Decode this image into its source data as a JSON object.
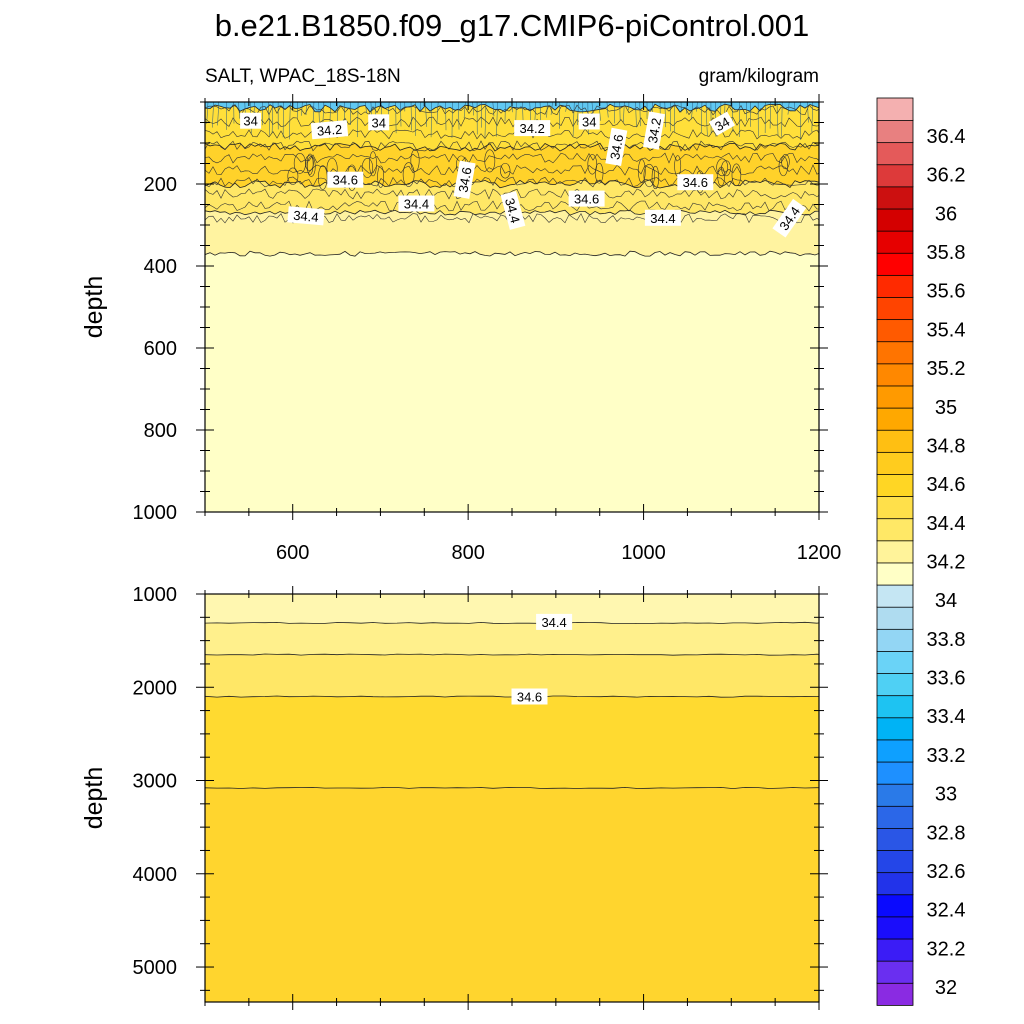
{
  "title": "b.e21.B1850.f09_g17.CMIP6-piControl.001",
  "left_subtitle": "SALT, WPAC_18S-18N",
  "right_subtitle": "gram/kilogram",
  "colors": {
    "level_fills": [
      "#8a2be2",
      "#6a2ff0",
      "#3b1cf6",
      "#1a0dfb",
      "#0a0afe",
      "#2233ea",
      "#2446e8",
      "#2a56e6",
      "#2b67e8",
      "#2a7ae8",
      "#1e90ff",
      "#0ea0ff",
      "#00b3f5",
      "#1ec3f2",
      "#4fd0f4",
      "#6ad3f7",
      "#93d6f4",
      "#afdcf0",
      "#c5e6f3",
      "#ffffc6",
      "#fff39a",
      "#ffe866",
      "#ffe04a",
      "#ffd624",
      "#ffcc1e",
      "#ffbf12",
      "#ffa800",
      "#ff9a00",
      "#ff8800",
      "#ff7400",
      "#ff5a00",
      "#ff4400",
      "#ff2a00",
      "#ff0000",
      "#e60000",
      "#d40000",
      "#cc1010",
      "#dd3a3a",
      "#e45a5a",
      "#e88080",
      "#f4b0b0"
    ],
    "top_band_colors": [
      "#60c8f2",
      "#ffdf3a",
      "#ffd22a",
      "#ffe766",
      "#fff3a0",
      "#ffffc7"
    ],
    "bottom_band_colors": [
      "#fff7b0",
      "#fff08c",
      "#ffe766",
      "#ffda30",
      "#ffd52e"
    ]
  },
  "chart_data": [
    {
      "type": "heatmap",
      "panel": "upper",
      "x_ticks": [
        600,
        800,
        1000,
        1200
      ],
      "x_tick_labels": [
        "600",
        "800",
        "1000",
        "1200"
      ],
      "xlim": [
        500,
        1200
      ],
      "y_ticks": [
        200,
        400,
        600,
        800,
        1000
      ],
      "y_tick_labels": [
        "200",
        "400",
        "600",
        "800",
        "1000"
      ],
      "ylim": [
        0,
        1000
      ],
      "y_reversed": true,
      "ylabel": "depth",
      "layers": [
        {
          "depth_top": 0,
          "depth_bottom": 15,
          "value": 33.9
        },
        {
          "depth_top": 15,
          "depth_bottom": 110,
          "value": 34.7
        },
        {
          "depth_top": 110,
          "depth_bottom": 200,
          "value": 34.8
        },
        {
          "depth_top": 200,
          "depth_bottom": 270,
          "value": 34.5
        },
        {
          "depth_top": 270,
          "depth_bottom": 370,
          "value": 34.3
        },
        {
          "depth_top": 370,
          "depth_bottom": 1000,
          "value": 34.2
        }
      ],
      "contour_labels": [
        {
          "text": "34",
          "x": 552,
          "depth": 48,
          "angle": 0
        },
        {
          "text": "34.2",
          "x": 642,
          "depth": 70,
          "angle": -5
        },
        {
          "text": "34",
          "x": 698,
          "depth": 52,
          "angle": 0
        },
        {
          "text": "34.2",
          "x": 873,
          "depth": 66,
          "angle": 0
        },
        {
          "text": "34",
          "x": 938,
          "depth": 50,
          "angle": 0
        },
        {
          "text": "34.6",
          "x": 970,
          "depth": 110,
          "angle": -80
        },
        {
          "text": "34.2",
          "x": 1013,
          "depth": 70,
          "angle": -80
        },
        {
          "text": "34",
          "x": 1090,
          "depth": 55,
          "angle": -30
        },
        {
          "text": "34.6",
          "x": 660,
          "depth": 192,
          "angle": 0
        },
        {
          "text": "34.6",
          "x": 797,
          "depth": 190,
          "angle": -80
        },
        {
          "text": "34.6",
          "x": 935,
          "depth": 238,
          "angle": 0
        },
        {
          "text": "34.6",
          "x": 1059,
          "depth": 198,
          "angle": 0
        },
        {
          "text": "34.4",
          "x": 615,
          "depth": 280,
          "angle": 5
        },
        {
          "text": "34.4",
          "x": 741,
          "depth": 250,
          "angle": 0
        },
        {
          "text": "34.4",
          "x": 850,
          "depth": 265,
          "angle": 75
        },
        {
          "text": "34.4",
          "x": 1022,
          "depth": 285,
          "angle": 0
        },
        {
          "text": "34.4",
          "x": 1167,
          "depth": 285,
          "angle": -55
        }
      ]
    },
    {
      "type": "heatmap",
      "panel": "lower",
      "xlim": [
        500,
        1200
      ],
      "y_ticks": [
        1000,
        2000,
        3000,
        4000,
        5000
      ],
      "y_tick_labels": [
        "1000",
        "2000",
        "3000",
        "4000",
        "5000"
      ],
      "ylim": [
        1000,
        5375
      ],
      "y_reversed": true,
      "ylabel": "depth",
      "layers": [
        {
          "depth_top": 1000,
          "depth_bottom": 1310,
          "value": 34.3
        },
        {
          "depth_top": 1310,
          "depth_bottom": 1650,
          "value": 34.4
        },
        {
          "depth_top": 1650,
          "depth_bottom": 2100,
          "value": 34.5
        },
        {
          "depth_top": 2100,
          "depth_bottom": 3080,
          "value": 34.7
        },
        {
          "depth_top": 3080,
          "depth_bottom": 5375,
          "value": 34.7
        }
      ],
      "contour_labels": [
        {
          "text": "34.4",
          "x": 898,
          "depth": 1310,
          "angle": 0
        },
        {
          "text": "34.6",
          "x": 870,
          "depth": 2110,
          "angle": 0
        }
      ]
    }
  ],
  "colorbar": {
    "labels": [
      "36.4",
      "36.2",
      "36",
      "35.8",
      "35.6",
      "35.4",
      "35.2",
      "35",
      "34.8",
      "34.6",
      "34.4",
      "34.2",
      "34",
      "33.8",
      "33.6",
      "33.4",
      "33.2",
      "33",
      "32.8",
      "32.6",
      "32.4",
      "32.2",
      "32"
    ]
  }
}
